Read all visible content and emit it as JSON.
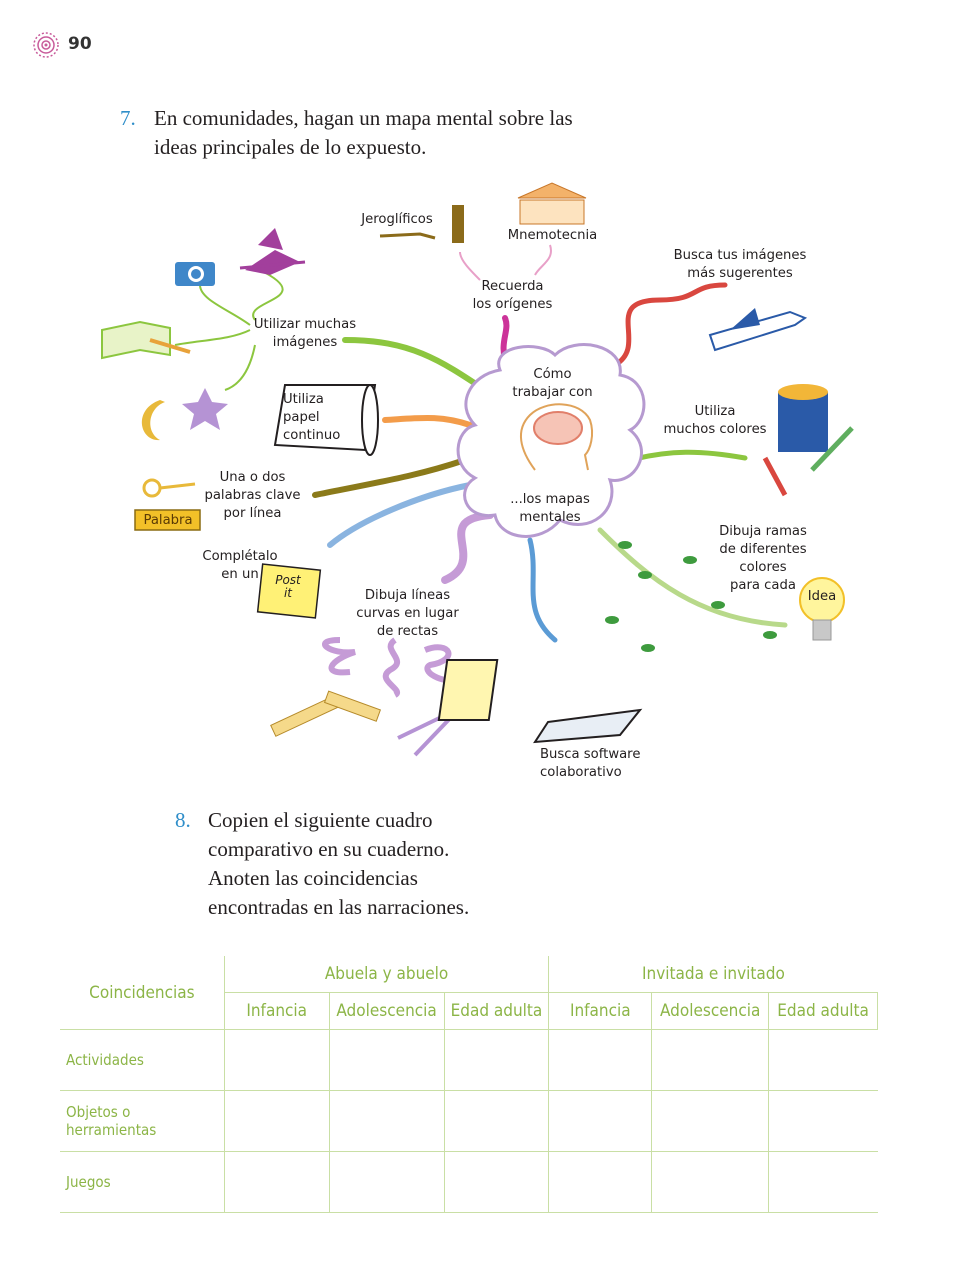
{
  "page": {
    "number": "90"
  },
  "q7": {
    "number": "7.",
    "line1": "En comunidades, hagan un mapa mental sobre las",
    "line2": "ideas principales de lo expuesto."
  },
  "mindmap": {
    "center_top": "Cómo\ntrabajar con",
    "center_bottom": "...los mapas\nmentales",
    "jeroglificos": "Jeroglíficos",
    "mnemotecnia": "Mnemotecnia",
    "recuerda": "Recuerda\nlos orígenes",
    "busca_imagenes": "Busca tus imágenes\nmás sugerentes",
    "utilizar_imagenes": "Utilizar muchas\nimágenes",
    "papel": "Utiliza\npapel\ncontinuo",
    "colores": "Utiliza\nmuchos colores",
    "palabras": "Una o dos\npalabras clave\npor línea",
    "palabra_tag": "Palabra",
    "completalo": "Complétalo\nen un",
    "postit": "Post\nit",
    "lineas_curvas": "Dibuja líneas\ncurvas en lugar\nde rectas",
    "ramas": "Dibuja ramas\nde diferentes\ncolores\npara cada",
    "idea": "Idea",
    "software": "Busca software\ncolaborativo"
  },
  "q8": {
    "number": "8.",
    "lines": [
      "Copien el siguiente cuadro",
      "comparativo en su cuaderno.",
      "Anoten las coincidencias",
      "encontradas en las narraciones."
    ]
  },
  "table": {
    "corner": "Coincidencias",
    "group1": "Abuela y abuelo",
    "group2": "Invitada e invitado",
    "subheaders": [
      "Infancia",
      "Adolescencia",
      "Edad adulta",
      "Infancia",
      "Adolescencia",
      "Edad adulta"
    ],
    "rows": [
      "Actividades",
      "Objetos o herramientas",
      "Juegos"
    ]
  },
  "colors": {
    "accent_blue": "#2f8ec9",
    "table_green": "#8cb547",
    "cloud_purple": "#b69ad0"
  }
}
